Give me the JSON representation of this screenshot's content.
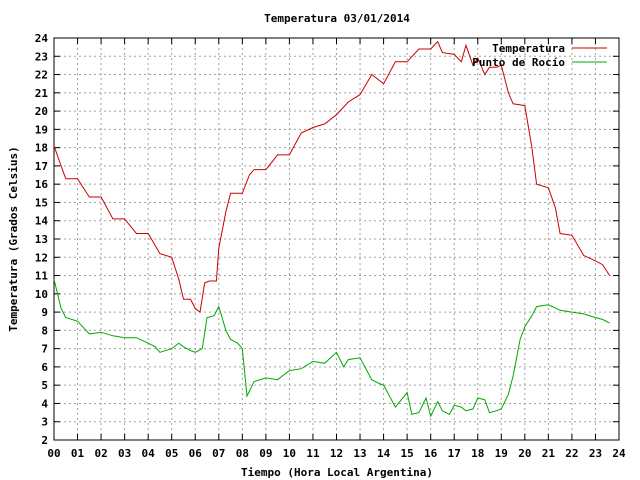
{
  "chart_data": {
    "type": "line",
    "title": "Temperatura 03/01/2014",
    "xlabel": "Tiempo (Hora Local Argentina)",
    "ylabel": "Temperatura (Grados Celsius)",
    "xlim": [
      0,
      24
    ],
    "ylim": [
      2,
      24
    ],
    "grid": true,
    "legend": "top-right",
    "x_tick_labels": [
      "00",
      "01",
      "02",
      "03",
      "04",
      "05",
      "06",
      "07",
      "08",
      "09",
      "10",
      "11",
      "12",
      "13",
      "14",
      "15",
      "16",
      "17",
      "18",
      "19",
      "20",
      "21",
      "22",
      "23",
      "24"
    ],
    "y_ticks": [
      2,
      3,
      4,
      5,
      6,
      7,
      8,
      9,
      10,
      11,
      12,
      13,
      14,
      15,
      16,
      17,
      18,
      19,
      20,
      21,
      22,
      23,
      24
    ],
    "series": [
      {
        "name": "Temperatura",
        "color": "#cc0000",
        "x": [
          0,
          0.3,
          0.5,
          1.0,
          1.5,
          2.0,
          2.5,
          3.0,
          3.5,
          4.0,
          4.5,
          5.0,
          5.3,
          5.5,
          5.8,
          6.0,
          6.2,
          6.4,
          6.6,
          6.9,
          7.0,
          7.3,
          7.5,
          8.0,
          8.3,
          8.5,
          9.0,
          9.5,
          10.0,
          10.5,
          11.0,
          11.5,
          12.0,
          12.5,
          13.0,
          13.5,
          14.0,
          14.5,
          15.0,
          15.5,
          16.0,
          16.3,
          16.5,
          17.0,
          17.3,
          17.5,
          17.8,
          18.0,
          18.3,
          18.5,
          18.8,
          19.0,
          19.3,
          19.5,
          20.0,
          20.3,
          20.5,
          21.0,
          21.3,
          21.5,
          22.0,
          22.5,
          23.0,
          23.3,
          23.6
        ],
        "values": [
          18.1,
          17.0,
          16.3,
          16.3,
          15.3,
          15.3,
          14.1,
          14.1,
          13.3,
          13.3,
          12.2,
          12.0,
          10.8,
          9.7,
          9.7,
          9.2,
          9.0,
          10.6,
          10.7,
          10.7,
          12.5,
          14.5,
          15.5,
          15.5,
          16.5,
          16.8,
          16.8,
          17.6,
          17.6,
          18.8,
          19.1,
          19.3,
          19.8,
          20.5,
          20.9,
          22.0,
          21.5,
          22.7,
          22.7,
          23.4,
          23.4,
          23.8,
          23.2,
          23.1,
          22.7,
          23.6,
          22.5,
          22.9,
          22.0,
          22.4,
          22.4,
          22.5,
          21.0,
          20.4,
          20.3,
          18.0,
          16.0,
          15.8,
          14.7,
          13.3,
          13.2,
          12.1,
          11.8,
          11.6,
          11.0
        ]
      },
      {
        "name": "Punto de Rocío",
        "color": "#00aa00",
        "x": [
          0,
          0.3,
          0.5,
          1.0,
          1.5,
          2.0,
          2.5,
          3.0,
          3.5,
          4.0,
          4.3,
          4.5,
          5.0,
          5.3,
          5.5,
          5.8,
          6.0,
          6.3,
          6.5,
          6.8,
          7.0,
          7.3,
          7.5,
          7.8,
          8.0,
          8.2,
          8.5,
          9.0,
          9.5,
          10.0,
          10.5,
          11.0,
          11.5,
          12.0,
          12.3,
          12.5,
          13.0,
          13.5,
          13.8,
          14.0,
          14.5,
          15.0,
          15.2,
          15.5,
          15.8,
          16.0,
          16.3,
          16.5,
          16.8,
          17.0,
          17.3,
          17.5,
          17.8,
          18.0,
          18.3,
          18.5,
          18.8,
          19.0,
          19.3,
          19.5,
          19.8,
          20.0,
          20.3,
          20.5,
          21.0,
          21.5,
          22.0,
          22.5,
          23.0,
          23.3,
          23.6
        ],
        "values": [
          10.8,
          9.2,
          8.7,
          8.5,
          7.8,
          7.9,
          7.7,
          7.6,
          7.6,
          7.3,
          7.1,
          6.8,
          7.0,
          7.3,
          7.1,
          6.9,
          6.8,
          7.0,
          8.7,
          8.8,
          9.3,
          8.0,
          7.5,
          7.3,
          7.0,
          4.4,
          5.2,
          5.4,
          5.3,
          5.8,
          5.9,
          6.3,
          6.2,
          6.8,
          6.0,
          6.4,
          6.5,
          5.3,
          5.1,
          5.0,
          3.8,
          4.6,
          3.4,
          3.5,
          4.3,
          3.3,
          4.1,
          3.6,
          3.4,
          3.9,
          3.8,
          3.6,
          3.7,
          4.3,
          4.2,
          3.5,
          3.6,
          3.7,
          4.5,
          5.5,
          7.5,
          8.2,
          8.8,
          9.3,
          9.4,
          9.1,
          9.0,
          8.9,
          8.7,
          8.6,
          8.4
        ]
      }
    ]
  }
}
